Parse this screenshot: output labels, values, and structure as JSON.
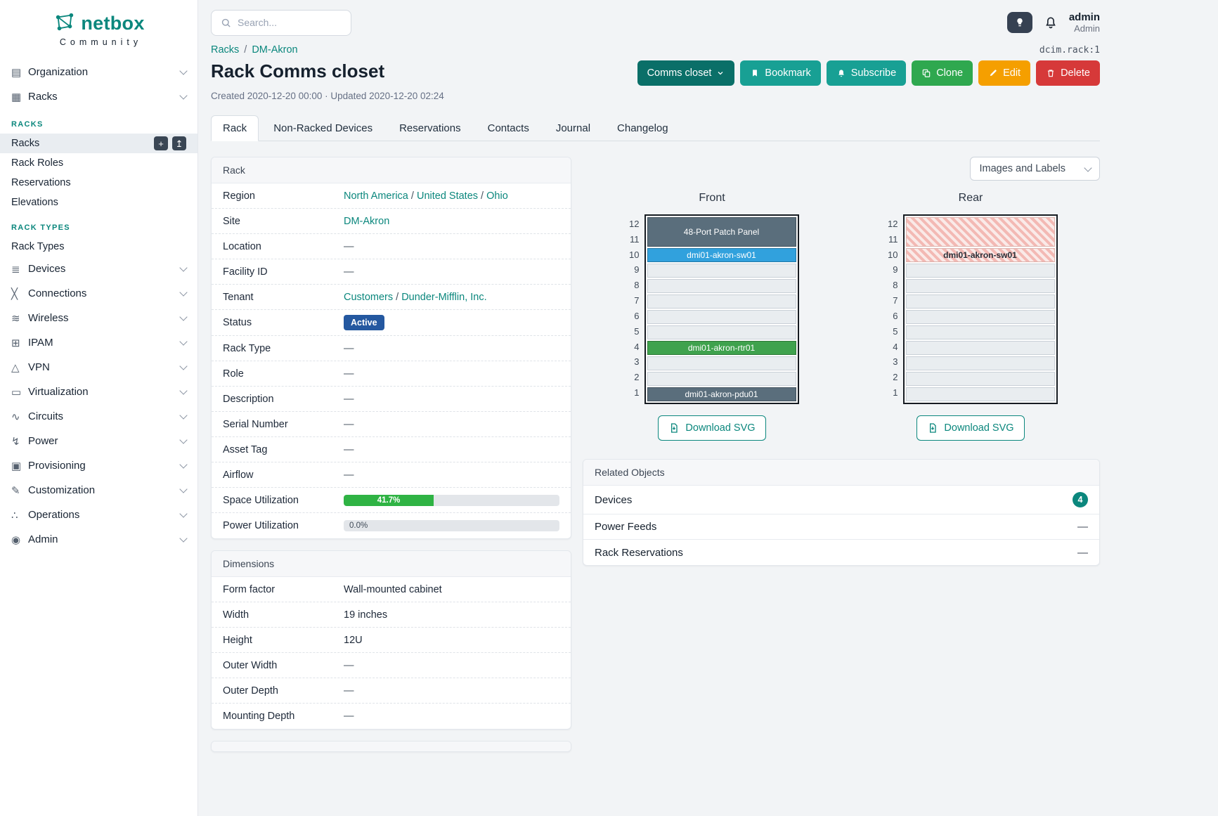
{
  "brand": {
    "logo_text": "netbox",
    "subtitle": "Community"
  },
  "topbar": {
    "search_placeholder": "Search...",
    "user_name": "admin",
    "user_role": "Admin"
  },
  "sidebar": {
    "items": [
      {
        "type": "top",
        "label": "Organization",
        "icon": "organization-icon",
        "glyph": "▤"
      },
      {
        "type": "top",
        "label": "Racks",
        "icon": "racks-icon",
        "glyph": "▦"
      },
      {
        "type": "section",
        "label": "RACKS"
      },
      {
        "type": "sub",
        "label": "Racks",
        "active": true,
        "buttons": [
          {
            "name": "add",
            "glyph": "+"
          },
          {
            "name": "import",
            "glyph": "↥"
          }
        ]
      },
      {
        "type": "sub",
        "label": "Rack Roles"
      },
      {
        "type": "sub",
        "label": "Reservations"
      },
      {
        "type": "sub",
        "label": "Elevations"
      },
      {
        "type": "section",
        "label": "RACK TYPES"
      },
      {
        "type": "sub",
        "label": "Rack Types"
      },
      {
        "type": "top",
        "label": "Devices",
        "icon": "devices-icon",
        "glyph": "≣"
      },
      {
        "type": "top",
        "label": "Connections",
        "icon": "connections-icon",
        "glyph": "╳"
      },
      {
        "type": "top",
        "label": "Wireless",
        "icon": "wireless-icon",
        "glyph": "≋"
      },
      {
        "type": "top",
        "label": "IPAM",
        "icon": "ipam-icon",
        "glyph": "⊞"
      },
      {
        "type": "top",
        "label": "VPN",
        "icon": "vpn-icon",
        "glyph": "△"
      },
      {
        "type": "top",
        "label": "Virtualization",
        "icon": "virtualization-icon",
        "glyph": "▭"
      },
      {
        "type": "top",
        "label": "Circuits",
        "icon": "circuits-icon",
        "glyph": "∿"
      },
      {
        "type": "top",
        "label": "Power",
        "icon": "power-icon",
        "glyph": "↯"
      },
      {
        "type": "top",
        "label": "Provisioning",
        "icon": "provisioning-icon",
        "glyph": "▣"
      },
      {
        "type": "top",
        "label": "Customization",
        "icon": "customization-icon",
        "glyph": "✎"
      },
      {
        "type": "top",
        "label": "Operations",
        "icon": "operations-icon",
        "glyph": "∴"
      },
      {
        "type": "top",
        "label": "Admin",
        "icon": "admin-icon",
        "glyph": "◉"
      }
    ]
  },
  "breadcrumb": {
    "items": [
      "Racks",
      "DM-Akron"
    ],
    "separator": "/"
  },
  "header": {
    "title": "Rack Comms closet",
    "meta": "Created 2020-12-20 00:00 · Updated 2020-12-20 02:24",
    "object_id": "dcim.rack:1"
  },
  "actions": {
    "context": "Comms closet",
    "bookmark": "Bookmark",
    "subscribe": "Subscribe",
    "clone": "Clone",
    "edit": "Edit",
    "delete": "Delete"
  },
  "tabs": {
    "items": [
      "Rack",
      "Non-Racked Devices",
      "Reservations",
      "Contacts",
      "Journal",
      "Changelog"
    ],
    "active_index": 0
  },
  "link_separator": "/",
  "panels": [
    {
      "key": "rack",
      "title": "Rack",
      "rows": [
        {
          "label": "Region",
          "kind": "links",
          "values": [
            "North America",
            "United States",
            "Ohio"
          ]
        },
        {
          "label": "Site",
          "kind": "links",
          "values": [
            "DM-Akron"
          ]
        },
        {
          "label": "Location",
          "kind": "text",
          "value": "—",
          "muted": true
        },
        {
          "label": "Facility ID",
          "kind": "text",
          "value": "—",
          "muted": true
        },
        {
          "label": "Tenant",
          "kind": "links",
          "values": [
            "Customers",
            "Dunder-Mifflin, Inc."
          ]
        },
        {
          "label": "Status",
          "kind": "badge",
          "value": "Active",
          "color": "#2458a0"
        },
        {
          "label": "Rack Type",
          "kind": "text",
          "value": "—",
          "muted": true
        },
        {
          "label": "Role",
          "kind": "text",
          "value": "—",
          "muted": true
        },
        {
          "label": "Description",
          "kind": "text",
          "value": "—",
          "muted": true
        },
        {
          "label": "Serial Number",
          "kind": "text",
          "value": "—",
          "muted": true
        },
        {
          "label": "Asset Tag",
          "kind": "text",
          "value": "—",
          "muted": true
        },
        {
          "label": "Airflow",
          "kind": "text",
          "value": "—",
          "muted": true
        },
        {
          "label": "Space Utilization",
          "kind": "progress",
          "pct": 41.7,
          "text": "41.7%",
          "color": "#2fb344"
        },
        {
          "label": "Power Utilization",
          "kind": "progress",
          "pct": 0,
          "text": "0.0%",
          "color": "#2fb344"
        }
      ]
    },
    {
      "key": "dimensions",
      "title": "Dimensions",
      "rows": [
        {
          "label": "Form factor",
          "kind": "text",
          "value": "Wall-mounted cabinet"
        },
        {
          "label": "Width",
          "kind": "text",
          "value": "19 inches"
        },
        {
          "label": "Height",
          "kind": "text",
          "value": "12U"
        },
        {
          "label": "Outer Width",
          "kind": "text",
          "value": "—",
          "muted": true
        },
        {
          "label": "Outer Depth",
          "kind": "text",
          "value": "—",
          "muted": true
        },
        {
          "label": "Mounting Depth",
          "kind": "text",
          "value": "—",
          "muted": true
        }
      ]
    }
  ],
  "elevation": {
    "display_mode": "Images and Labels",
    "unit_count": 12,
    "views": [
      {
        "name": "Front",
        "download_label": "Download SVG",
        "rows": [
          {
            "span": 2,
            "kind": "device",
            "label": "48-Port Patch Panel",
            "color": "#5a6e7c"
          },
          {
            "span": 1,
            "kind": "device",
            "label": "dmi01-akron-sw01",
            "color": "#31a1dd"
          },
          {
            "span": 1,
            "kind": "empty"
          },
          {
            "span": 1,
            "kind": "empty"
          },
          {
            "span": 1,
            "kind": "empty"
          },
          {
            "span": 1,
            "kind": "empty"
          },
          {
            "span": 1,
            "kind": "empty"
          },
          {
            "span": 1,
            "kind": "device",
            "label": "dmi01-akron-rtr01",
            "color": "#3fa24d"
          },
          {
            "span": 1,
            "kind": "empty"
          },
          {
            "span": 1,
            "kind": "empty"
          },
          {
            "span": 1,
            "kind": "device",
            "label": "dmi01-akron-pdu01",
            "color": "#5a6e7c"
          }
        ]
      },
      {
        "name": "Rear",
        "download_label": "Download SVG",
        "rows": [
          {
            "span": 2,
            "kind": "hatched"
          },
          {
            "span": 1,
            "kind": "hatched",
            "label": "dmi01-akron-sw01"
          },
          {
            "span": 1,
            "kind": "empty"
          },
          {
            "span": 1,
            "kind": "empty"
          },
          {
            "span": 1,
            "kind": "empty"
          },
          {
            "span": 1,
            "kind": "empty"
          },
          {
            "span": 1,
            "kind": "empty"
          },
          {
            "span": 1,
            "kind": "empty"
          },
          {
            "span": 1,
            "kind": "empty"
          },
          {
            "span": 1,
            "kind": "empty"
          },
          {
            "span": 1,
            "kind": "empty"
          }
        ]
      }
    ]
  },
  "related": {
    "title": "Related Objects",
    "rows": [
      {
        "label": "Devices",
        "badge": "4"
      },
      {
        "label": "Power Feeds",
        "value": "—"
      },
      {
        "label": "Rack Reservations",
        "value": "—"
      }
    ]
  }
}
